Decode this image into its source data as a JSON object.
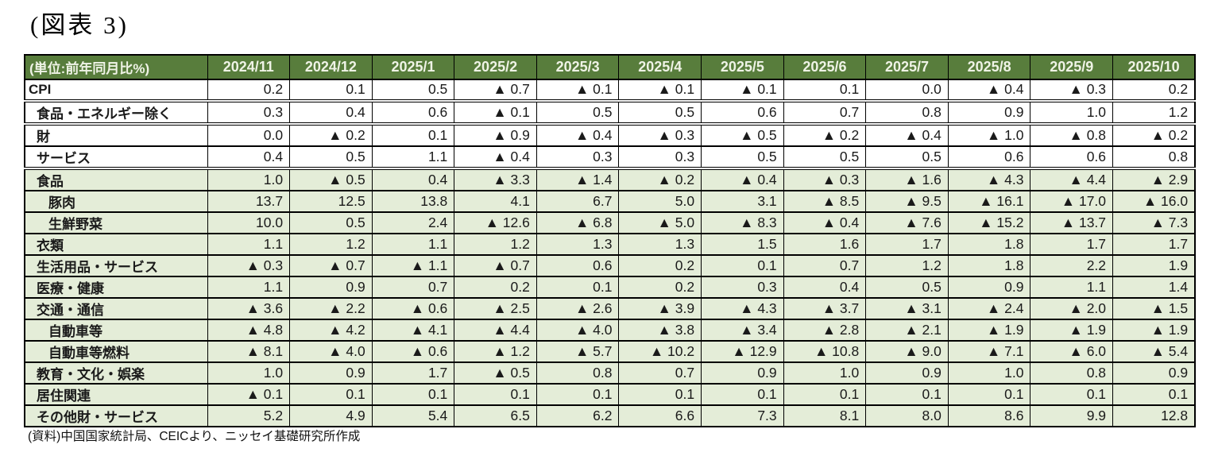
{
  "title": "(図表 3)",
  "source_note": "(資料)中国国家統計局、CEICより、ニッセイ基礎研究所作成",
  "table": {
    "unit_header": "(単位:前年同月比%)",
    "negative_marker": "▲",
    "columns": [
      "2024/11",
      "2024/12",
      "2025/1",
      "2025/2",
      "2025/3",
      "2025/4",
      "2025/5",
      "2025/6",
      "2025/7",
      "2025/8",
      "2025/9",
      "2025/10"
    ],
    "rows": [
      {
        "label": "CPI",
        "indent": 0,
        "section": "headline",
        "group_end": true,
        "values": [
          "0.2",
          "0.1",
          "0.5",
          "▲ 0.7",
          "▲ 0.1",
          "▲ 0.1",
          "▲ 0.1",
          "0.1",
          "0.0",
          "▲ 0.4",
          "▲ 0.3",
          "0.2"
        ]
      },
      {
        "label": "食品・エネルギー除く",
        "indent": 1,
        "section": "headline",
        "group_end": true,
        "values": [
          "0.3",
          "0.4",
          "0.6",
          "▲ 0.1",
          "0.5",
          "0.5",
          "0.6",
          "0.7",
          "0.8",
          "0.9",
          "1.0",
          "1.2"
        ]
      },
      {
        "label": "財",
        "indent": 1,
        "section": "headline",
        "group_end": false,
        "values": [
          "0.0",
          "▲ 0.2",
          "0.1",
          "▲ 0.9",
          "▲ 0.4",
          "▲ 0.3",
          "▲ 0.5",
          "▲ 0.2",
          "▲ 0.4",
          "▲ 1.0",
          "▲ 0.8",
          "▲ 0.2"
        ]
      },
      {
        "label": "サービス",
        "indent": 1,
        "section": "headline",
        "group_end": true,
        "values": [
          "0.4",
          "0.5",
          "1.1",
          "▲ 0.4",
          "0.3",
          "0.3",
          "0.5",
          "0.5",
          "0.5",
          "0.6",
          "0.6",
          "0.8"
        ]
      },
      {
        "label": "食品",
        "indent": 1,
        "section": "category",
        "group_end": false,
        "values": [
          "1.0",
          "▲ 0.5",
          "0.4",
          "▲ 3.3",
          "▲ 1.4",
          "▲ 0.2",
          "▲ 0.4",
          "▲ 0.3",
          "▲ 1.6",
          "▲ 4.3",
          "▲ 4.4",
          "▲ 2.9"
        ]
      },
      {
        "label": "豚肉",
        "indent": 2,
        "section": "category",
        "group_end": false,
        "values": [
          "13.7",
          "12.5",
          "13.8",
          "4.1",
          "6.7",
          "5.0",
          "3.1",
          "▲ 8.5",
          "▲ 9.5",
          "▲ 16.1",
          "▲ 17.0",
          "▲ 16.0"
        ]
      },
      {
        "label": "生鮮野菜",
        "indent": 2,
        "section": "category",
        "group_end": false,
        "values": [
          "10.0",
          "0.5",
          "2.4",
          "▲ 12.6",
          "▲ 6.8",
          "▲ 5.0",
          "▲ 8.3",
          "▲ 0.4",
          "▲ 7.6",
          "▲ 15.2",
          "▲ 13.7",
          "▲ 7.3"
        ]
      },
      {
        "label": "衣類",
        "indent": 1,
        "section": "category",
        "group_end": false,
        "values": [
          "1.1",
          "1.2",
          "1.1",
          "1.2",
          "1.3",
          "1.3",
          "1.5",
          "1.6",
          "1.7",
          "1.8",
          "1.7",
          "1.7"
        ]
      },
      {
        "label": "生活用品・サービス",
        "indent": 1,
        "section": "category",
        "group_end": false,
        "values": [
          "▲ 0.3",
          "▲ 0.7",
          "▲ 1.1",
          "▲ 0.7",
          "0.6",
          "0.2",
          "0.1",
          "0.7",
          "1.2",
          "1.8",
          "2.2",
          "1.9"
        ]
      },
      {
        "label": "医療・健康",
        "indent": 1,
        "section": "category",
        "group_end": false,
        "values": [
          "1.1",
          "0.9",
          "0.7",
          "0.2",
          "0.1",
          "0.2",
          "0.3",
          "0.4",
          "0.5",
          "0.9",
          "1.1",
          "1.4"
        ]
      },
      {
        "label": "交通・通信",
        "indent": 1,
        "section": "category",
        "group_end": false,
        "values": [
          "▲ 3.6",
          "▲ 2.2",
          "▲ 0.6",
          "▲ 2.5",
          "▲ 2.6",
          "▲ 3.9",
          "▲ 4.3",
          "▲ 3.7",
          "▲ 3.1",
          "▲ 2.4",
          "▲ 2.0",
          "▲ 1.5"
        ]
      },
      {
        "label": "自動車等",
        "indent": 2,
        "section": "category",
        "group_end": false,
        "values": [
          "▲ 4.8",
          "▲ 4.2",
          "▲ 4.1",
          "▲ 4.4",
          "▲ 4.0",
          "▲ 3.8",
          "▲ 3.4",
          "▲ 2.8",
          "▲ 2.1",
          "▲ 1.9",
          "▲ 1.9",
          "▲ 1.9"
        ]
      },
      {
        "label": "自動車等燃料",
        "indent": 2,
        "section": "category",
        "group_end": false,
        "values": [
          "▲ 8.1",
          "▲ 4.0",
          "▲ 0.6",
          "▲ 1.2",
          "▲ 5.7",
          "▲ 10.2",
          "▲ 12.9",
          "▲ 10.8",
          "▲ 9.0",
          "▲ 7.1",
          "▲ 6.0",
          "▲ 5.4"
        ]
      },
      {
        "label": "教育・文化・娯楽",
        "indent": 1,
        "section": "category",
        "group_end": false,
        "values": [
          "1.0",
          "0.9",
          "1.7",
          "▲ 0.5",
          "0.8",
          "0.7",
          "0.9",
          "1.0",
          "0.9",
          "1.0",
          "0.8",
          "0.9"
        ]
      },
      {
        "label": "居住関連",
        "indent": 1,
        "section": "category",
        "group_end": false,
        "values": [
          "▲ 0.1",
          "0.1",
          "0.1",
          "0.1",
          "0.1",
          "0.1",
          "0.1",
          "0.1",
          "0.1",
          "0.1",
          "0.1",
          "0.1"
        ]
      },
      {
        "label": "その他財・サービス",
        "indent": 1,
        "section": "category",
        "group_end": false,
        "values": [
          "5.2",
          "4.9",
          "5.4",
          "6.5",
          "6.2",
          "6.6",
          "7.3",
          "8.1",
          "8.0",
          "8.6",
          "9.9",
          "12.8"
        ]
      }
    ]
  },
  "colors": {
    "header_green": "#587d3c",
    "row_light_green": "#e4edd8",
    "header_text": "#eff3e6",
    "border": "#000000"
  }
}
